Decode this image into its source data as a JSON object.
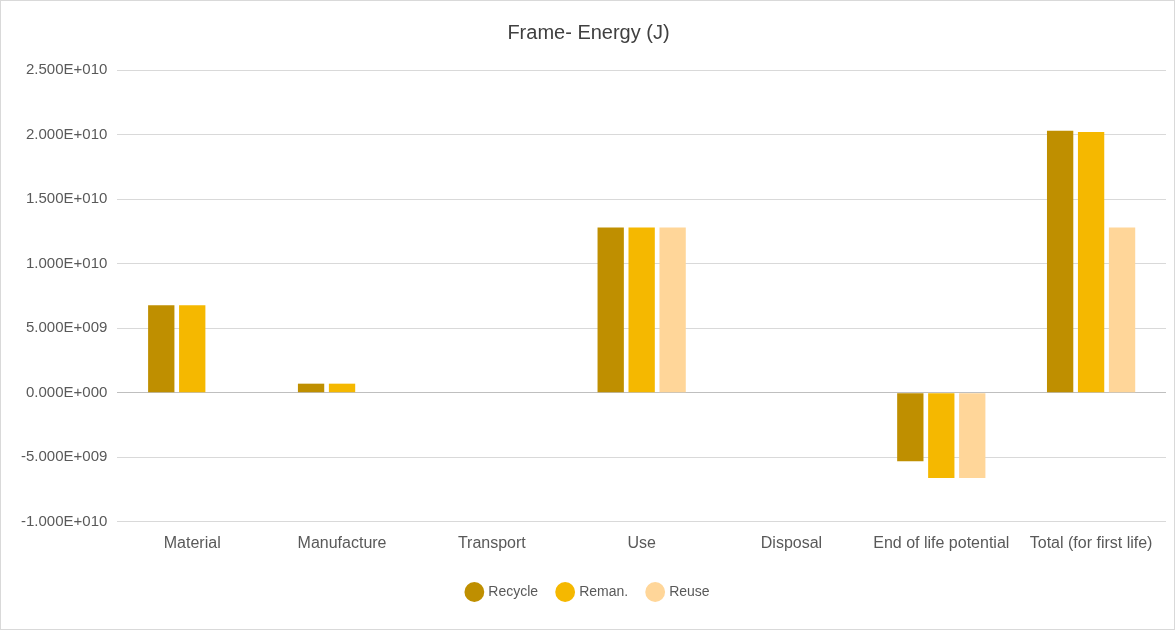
{
  "chart_data": {
    "type": "bar",
    "title": "Frame- Energy (J)",
    "categories": [
      "Material",
      "Manufacture",
      "Transport",
      "Use",
      "Disposal",
      "End of life potential",
      "Total (for first life)"
    ],
    "series": [
      {
        "name": "Recycle",
        "color": "#bf8f00",
        "values": [
          6780000000.0,
          700000000.0,
          0,
          12800000000.0,
          0,
          -5300000000.0,
          20300000000.0
        ]
      },
      {
        "name": "Reman.",
        "color": "#f5b800",
        "values": [
          6780000000.0,
          700000000.0,
          0,
          12800000000.0,
          0,
          -6600000000.0,
          20200000000.0
        ]
      },
      {
        "name": "Reuse",
        "color": "#ffd699",
        "values": [
          0,
          0,
          0,
          12800000000.0,
          0,
          -6600000000.0,
          12800000000.0
        ]
      }
    ],
    "ylim": [
      -10000000000.0,
      25000000000.0
    ],
    "yticks": [
      {
        "value": -10000000000.0,
        "label": "-1.000E+010"
      },
      {
        "value": -5000000000.0,
        "label": "-5.000E+009"
      },
      {
        "value": 0,
        "label": "0.000E+000"
      },
      {
        "value": 5000000000.0,
        "label": "5.000E+009"
      },
      {
        "value": 10000000000.0,
        "label": "1.000E+010"
      },
      {
        "value": 15000000000.0,
        "label": "1.500E+010"
      },
      {
        "value": 20000000000.0,
        "label": "2.000E+010"
      },
      {
        "value": 25000000000.0,
        "label": "2.500E+010"
      }
    ],
    "grid": "y",
    "legend": "bottom"
  }
}
